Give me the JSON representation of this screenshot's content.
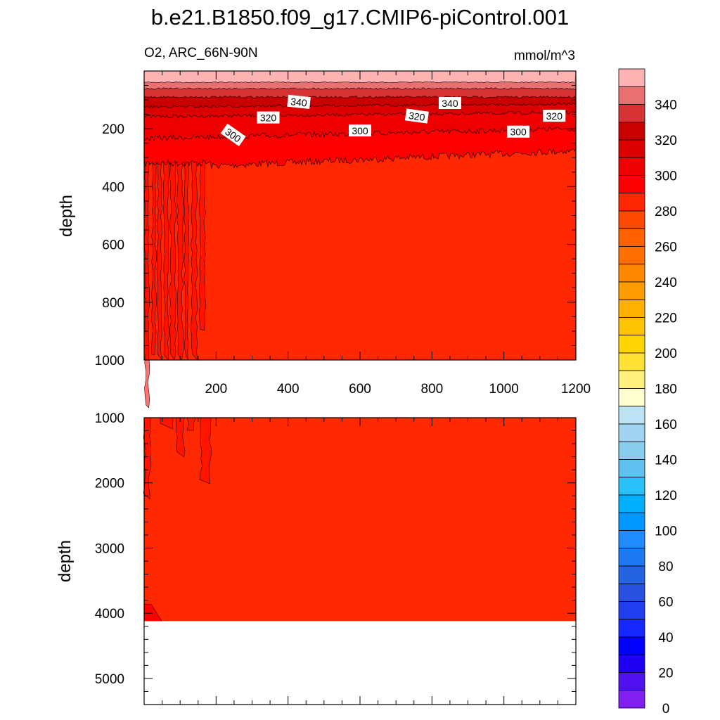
{
  "chart_data": {
    "type": "heatmap",
    "title": "b.e21.B1850.f09_g17.CMIP6-piControl.001",
    "subtitle_left": "O2, ARC_66N-90N",
    "subtitle_right": "mmol/m^3",
    "xlabel": "",
    "ylabel": "depth",
    "xlim": [
      0,
      1200
    ],
    "x_ticks": [
      200,
      400,
      600,
      800,
      1000,
      1200
    ],
    "panels": [
      {
        "name": "upper",
        "ylim": [
          1000,
          0
        ],
        "y_ticks": [
          200,
          400,
          600,
          800,
          1000
        ],
        "contour_labels": [
          {
            "text": "340",
            "x": 430,
            "y": 108
          },
          {
            "text": "340",
            "x": 850,
            "y": 112
          },
          {
            "text": "320",
            "x": 345,
            "y": 162
          },
          {
            "text": "320",
            "x": 758,
            "y": 157
          },
          {
            "text": "320",
            "x": 1140,
            "y": 156
          },
          {
            "text": "300",
            "x": 247,
            "y": 222
          },
          {
            "text": "300",
            "x": 600,
            "y": 207
          },
          {
            "text": "300",
            "x": 1040,
            "y": 211
          }
        ],
        "layers": [
          {
            "from_depth": 0,
            "to_depth": 30,
            "value_range": "350+"
          },
          {
            "from_depth": 30,
            "to_depth": 95,
            "value_range": "320-350"
          },
          {
            "from_depth": 95,
            "to_depth": 300,
            "value_range": "290-320"
          },
          {
            "from_depth": 300,
            "to_depth": 1000,
            "value_range": "280-290"
          }
        ]
      },
      {
        "name": "lower",
        "ylim": [
          5400,
          1000
        ],
        "y_ticks": [
          1000,
          2000,
          3000,
          4000,
          5000
        ],
        "max_depth_with_data": 4120
      }
    ],
    "colorbar": {
      "tick_labels": [
        "340",
        "320",
        "300",
        "280",
        "260",
        "240",
        "220",
        "200",
        "180",
        "160",
        "140",
        "120",
        "100",
        "80",
        "60",
        "40",
        "20",
        "0"
      ],
      "levels": [
        360,
        350,
        340,
        330,
        320,
        310,
        300,
        290,
        280,
        270,
        260,
        250,
        240,
        230,
        220,
        210,
        200,
        190,
        180,
        170,
        160,
        150,
        140,
        130,
        120,
        110,
        100,
        90,
        80,
        70,
        60,
        50,
        40,
        30,
        20,
        10,
        0,
        -10
      ],
      "colors": [
        "#ffb3b3",
        "#e87070",
        "#d63434",
        "#c80000",
        "#dc0000",
        "#ee0000",
        "#ff0000",
        "#ff2800",
        "#ff4800",
        "#ff6000",
        "#ff7000",
        "#ff8800",
        "#ff9c00",
        "#ffb000",
        "#ffc400",
        "#ffd400",
        "#ffe233",
        "#fff080",
        "#ffffd0",
        "#bde3f4",
        "#a0d4f0",
        "#88ccee",
        "#60c0ee",
        "#2ac0f8",
        "#00b0ff",
        "#0098ff",
        "#1e8cff",
        "#1e78f0",
        "#2464e0",
        "#2a50e0",
        "#2040f0",
        "#1428ff",
        "#0000ff",
        "#2000f0",
        "#5010f0",
        "#8020f0"
      ]
    }
  },
  "colors": {
    "fill_main": "#ff2800",
    "fill_300": "#ff0000",
    "fill_310": "#ee0000",
    "fill_320": "#dc0000",
    "fill_330": "#c80000",
    "fill_340": "#d63434",
    "fill_350": "#e87070",
    "fill_top": "#ffb3b3"
  }
}
